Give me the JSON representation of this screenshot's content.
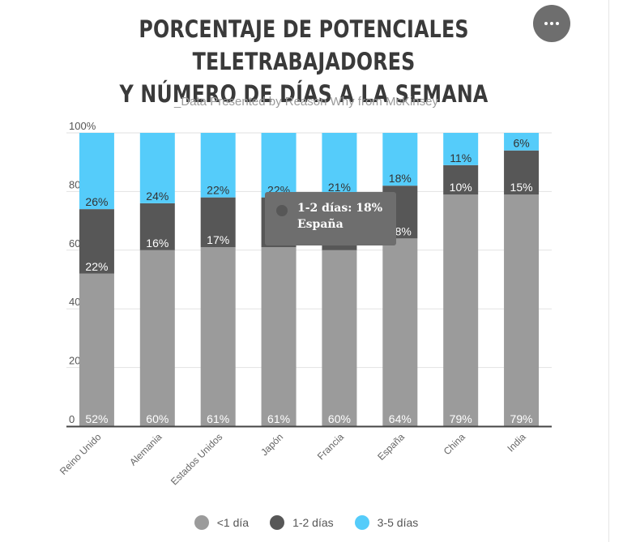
{
  "header": {
    "title_line1": "PORCENTAJE DE POTENCIALES TELETRABAJADORES",
    "title_line2": "Y NÚMERO DE DÍAS A LA SEMANA",
    "subtitle": "_Data Presented by Reason Why from McKinsey"
  },
  "tooltip": {
    "series_value": "1-2 días: 18%",
    "category": "España"
  },
  "colors": {
    "lt1": "#9b9b9b",
    "d12": "#575757",
    "d35": "#55ccfa",
    "grid": "#e2e2e2",
    "axis": "#444444"
  },
  "legend": [
    {
      "label": "<1 día",
      "color": "#9b9b9b"
    },
    {
      "label": "1-2 días",
      "color": "#575757"
    },
    {
      "label": "3-5 días",
      "color": "#55ccfa"
    }
  ],
  "chart_data": {
    "type": "bar",
    "stacked": true,
    "categories": [
      "Reino Unido",
      "Alemania",
      "Estados Unidos",
      "Japón",
      "Francia",
      "España",
      "China",
      "India"
    ],
    "series": [
      {
        "name": "<1 día",
        "values": [
          52,
          60,
          61,
          61,
          60,
          64,
          79,
          79
        ]
      },
      {
        "name": "1-2 días",
        "values": [
          22,
          16,
          17,
          17,
          19,
          18,
          10,
          15
        ]
      },
      {
        "name": "3-5 días",
        "values": [
          26,
          24,
          22,
          22,
          21,
          18,
          11,
          6
        ]
      }
    ],
    "labels": [
      [
        "52%",
        "60%",
        "61%",
        "61%",
        "60%",
        "64%",
        "79%",
        "79%"
      ],
      [
        "22%",
        "16%",
        "17%",
        "",
        "",
        "18%",
        "10%",
        "15%"
      ],
      [
        "26%",
        "24%",
        "22%",
        "22%",
        "21%",
        "18%",
        "11%",
        "6%"
      ]
    ],
    "yticks": [
      "0",
      "20%",
      "40%",
      "60%",
      "80%",
      "100%"
    ],
    "ylim": [
      0,
      100
    ],
    "grid": true,
    "legend_position": "bottom"
  }
}
